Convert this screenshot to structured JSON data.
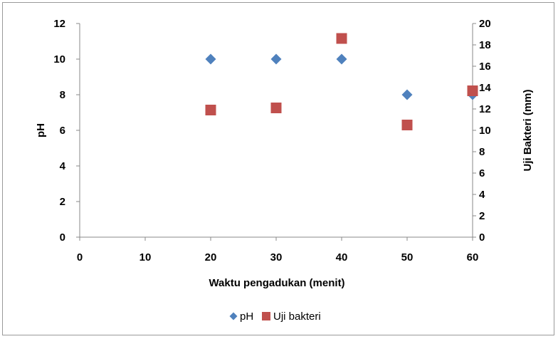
{
  "chart_data": {
    "type": "scatter",
    "xlabel": "Waktu pengadukan (menit)",
    "ylabel": "pH",
    "y2label": "Uji Bakteri (mm)",
    "xlim": [
      0,
      60
    ],
    "ylim": [
      0,
      12
    ],
    "y2lim": [
      0,
      20
    ],
    "x_ticks": [
      "0",
      "10",
      "20",
      "30",
      "40",
      "50",
      "60"
    ],
    "y_ticks": [
      "0",
      "2",
      "4",
      "6",
      "8",
      "10",
      "12"
    ],
    "y2_ticks": [
      "0",
      "2",
      "4",
      "6",
      "8",
      "10",
      "12",
      "14",
      "16",
      "18",
      "20"
    ],
    "grid": false,
    "legend_position": "bottom",
    "series": [
      {
        "name": "pH",
        "axis": "left",
        "marker": "diamond",
        "color": "#4F81BD",
        "x": [
          20,
          30,
          40,
          50,
          60
        ],
        "y": [
          10,
          10,
          10,
          8,
          8
        ]
      },
      {
        "name": "Uji bakteri",
        "axis": "right",
        "marker": "square",
        "color": "#C0504D",
        "x": [
          20,
          30,
          40,
          50,
          60
        ],
        "y": [
          11.9,
          12.1,
          18.6,
          10.5,
          13.7
        ]
      }
    ]
  }
}
